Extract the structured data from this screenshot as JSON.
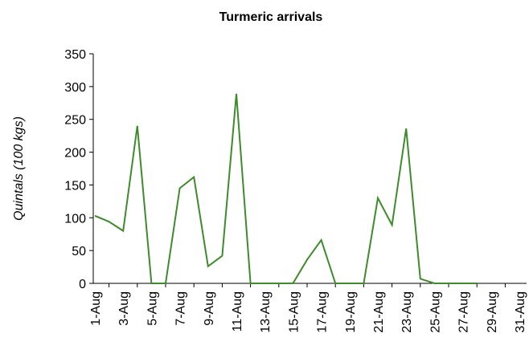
{
  "chart_data": {
    "type": "line",
    "title": "Turmeric arrivals",
    "ylabel": "Quintals (100 kgs)",
    "categories": [
      "1-Aug",
      null,
      "3-Aug",
      null,
      "5-Aug",
      null,
      "7-Aug",
      null,
      "9-Aug",
      null,
      "11-Aug",
      null,
      "13-Aug",
      null,
      "15-Aug",
      null,
      "17-Aug",
      null,
      "19-Aug",
      null,
      "21-Aug",
      null,
      "23-Aug",
      null,
      "25-Aug",
      null,
      "27-Aug",
      null,
      "29-Aug",
      null,
      "31-Aug"
    ],
    "series": [
      {
        "name": "Turmeric arrivals",
        "color": "#3d8b2a",
        "values": [
          103,
          94,
          80,
          240,
          0,
          0,
          145,
          162,
          26,
          42,
          289,
          0,
          0,
          0,
          0,
          36,
          66,
          0,
          0,
          0,
          130,
          89,
          236,
          7,
          0,
          0,
          0,
          0,
          null,
          null,
          null
        ]
      }
    ],
    "ylim": [
      0,
      350
    ],
    "yticks": [
      0,
      50,
      100,
      150,
      200,
      250,
      300,
      350
    ],
    "grid": false
  }
}
